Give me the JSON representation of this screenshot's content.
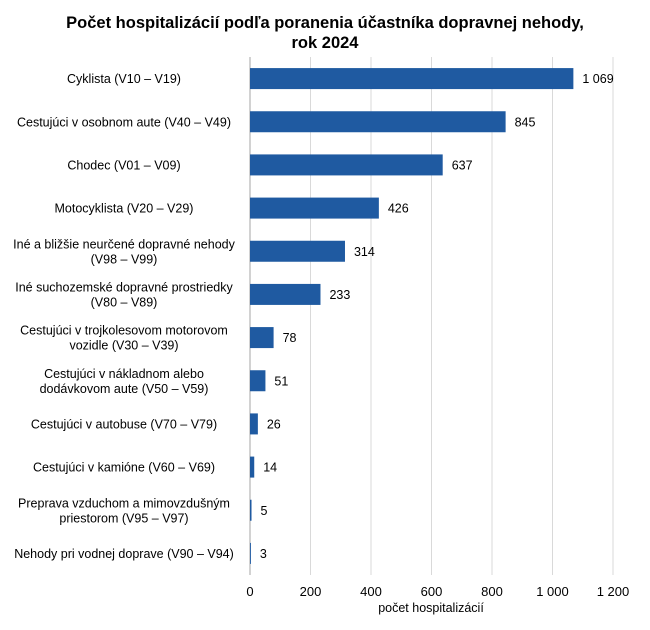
{
  "chart_data": {
    "type": "bar",
    "orientation": "horizontal",
    "title": "Počet hospitalizácií podľa poranenia účastníka dopravnej nehody,",
    "subtitle": "rok 2024",
    "xlabel": "počet hospitalizácií",
    "ylabel": "",
    "xlim": [
      0,
      1200
    ],
    "xticks": [
      0,
      200,
      400,
      600,
      800,
      1000,
      1200
    ],
    "xtick_labels": [
      "0",
      "200",
      "400",
      "600",
      "800",
      "1 000",
      "1 200"
    ],
    "grid": true,
    "bar_color": "#1f5aa1",
    "categories": [
      [
        "Cyklista (V10 – V19)"
      ],
      [
        "Cestujúci v osobnom aute (V40 – V49)"
      ],
      [
        "Chodec (V01 – V09)"
      ],
      [
        "Motocyklista (V20 – V29)"
      ],
      [
        "Iné a bližšie neurčené dopravné nehody",
        "(V98 – V99)"
      ],
      [
        "Iné suchozemské dopravné prostriedky",
        "(V80 – V89)"
      ],
      [
        "Cestujúci v trojkolesovom motorovom",
        "vozidle (V30 – V39)"
      ],
      [
        "Cestujúci v nákladnom alebo",
        "dodávkovom aute (V50 – V59)"
      ],
      [
        "Cestujúci v autobuse (V70 – V79)"
      ],
      [
        "Cestujúci v kamióne (V60 – V69)"
      ],
      [
        "Preprava vzduchom a mimovzdušným",
        "priestorom (V95 – V97)"
      ],
      [
        "Nehody pri vodnej doprave (V90 – V94)"
      ]
    ],
    "values": [
      1069,
      845,
      637,
      426,
      314,
      233,
      78,
      51,
      26,
      14,
      5,
      3
    ],
    "value_labels": [
      "1 069",
      "845",
      "637",
      "426",
      "314",
      "233",
      "78",
      "51",
      "26",
      "14",
      "5",
      "3"
    ]
  }
}
